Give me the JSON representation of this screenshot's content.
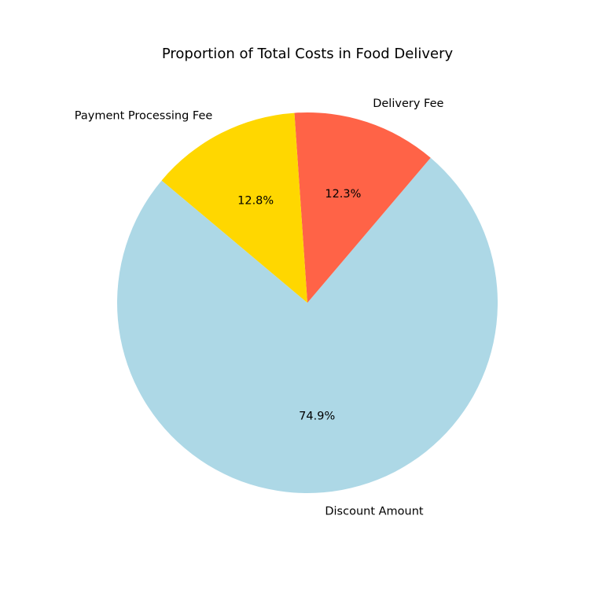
{
  "chart_data": {
    "type": "pie",
    "title": "Proportion of Total Costs in Food Delivery",
    "start_angle_deg": 140,
    "direction": "counterclockwise",
    "slices": [
      {
        "label": "Discount Amount",
        "percent": 74.9,
        "percent_label": "74.9%",
        "color": "#add8e6"
      },
      {
        "label": "Delivery Fee",
        "percent": 12.3,
        "percent_label": "12.3%",
        "color": "#ff6347"
      },
      {
        "label": "Payment Processing Fee",
        "percent": 12.8,
        "percent_label": "12.8%",
        "color": "#ffd700"
      }
    ]
  }
}
